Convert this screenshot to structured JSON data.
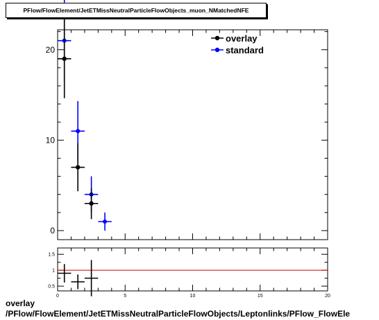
{
  "chart_data": [
    {
      "type": "scatter",
      "title": "PFlow/FlowElement/JetETMissNeutralParticleFlowObjects_muon_NMatchedNFE",
      "xlim": [
        0,
        20
      ],
      "ylim": [
        -1,
        22.2
      ],
      "yticks": [
        0,
        10,
        20
      ],
      "grid": false,
      "legend_position": "top-right",
      "series": [
        {
          "name": "overlay",
          "color": "#000000",
          "x": [
            0.5,
            1.5,
            2.5
          ],
          "y": [
            19,
            7,
            3
          ],
          "yerr": [
            4.36,
            2.65,
            1.73
          ],
          "xerr": 0.5
        },
        {
          "name": "standard",
          "color": "#0000ff",
          "x": [
            0.5,
            1.5,
            2.5,
            3.5
          ],
          "y": [
            21,
            11,
            4,
            1
          ],
          "yerr": [
            4.58,
            3.32,
            2.0,
            1.0
          ],
          "xerr": 0.5
        }
      ]
    },
    {
      "type": "scatter",
      "xlim": [
        0,
        20
      ],
      "ylim": [
        0.35,
        1.7
      ],
      "xticks": [
        0,
        5,
        10,
        15,
        20
      ],
      "yticks": [
        0.5,
        1,
        1.5
      ],
      "reference_line": 1,
      "reference_color": "#cc0000",
      "series": [
        {
          "color": "#000000",
          "x": [
            0.5,
            1.5,
            2.5
          ],
          "y": [
            0.905,
            0.636,
            0.75
          ],
          "yerr": [
            0.29,
            0.23,
            0.57
          ],
          "xerr": 0.5
        }
      ]
    }
  ],
  "caption": {
    "line1": "overlay",
    "line2": "/PFlow/FlowElement/JetETMissNeutralParticleFlowObjects/Leptonlinks/PFlow_FlowEle"
  }
}
